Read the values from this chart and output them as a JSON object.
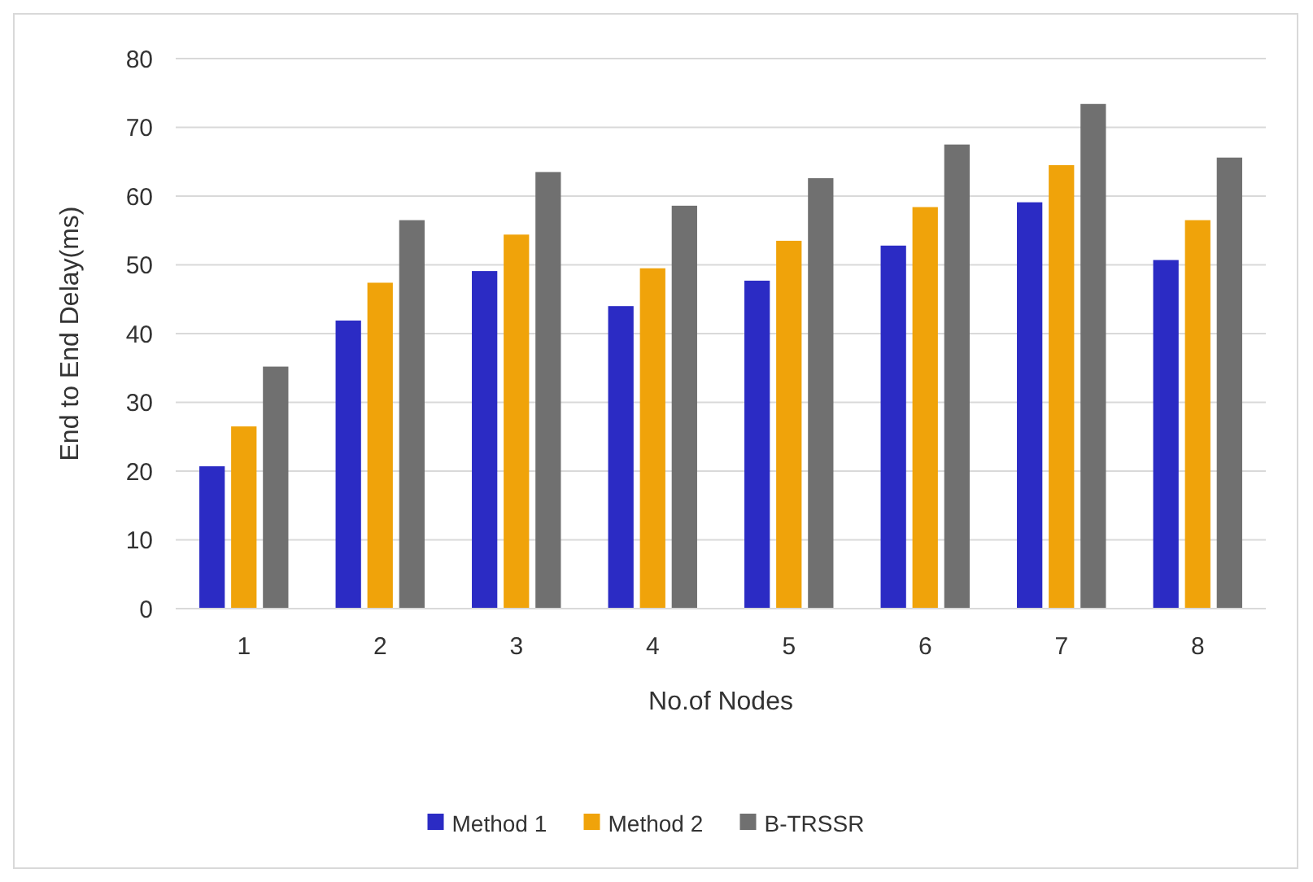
{
  "chart_data": {
    "type": "bar",
    "xlabel": "No.of Nodes",
    "ylabel": "End to End Delay(ms)",
    "categories": [
      "1",
      "2",
      "3",
      "4",
      "5",
      "6",
      "7",
      "8"
    ],
    "series": [
      {
        "name": "Method 1",
        "color": "#2b2bc4",
        "values": [
          20.7,
          41.9,
          49.1,
          44,
          47.7,
          52.8,
          59.1,
          50.7
        ]
      },
      {
        "name": "Method 2",
        "color": "#f0a30a",
        "values": [
          26.5,
          47.4,
          54.4,
          49.5,
          53.5,
          58.4,
          64.5,
          56.5
        ]
      },
      {
        "name": "B-TRSSR",
        "color": "#707070",
        "values": [
          35.2,
          56.5,
          63.5,
          58.6,
          62.6,
          67.5,
          73.4,
          65.6
        ]
      }
    ],
    "ylim": [
      0,
      80
    ],
    "yticks": [
      0,
      10,
      20,
      30,
      40,
      50,
      60,
      70,
      80
    ],
    "grid": "y",
    "legend": "bottom"
  }
}
